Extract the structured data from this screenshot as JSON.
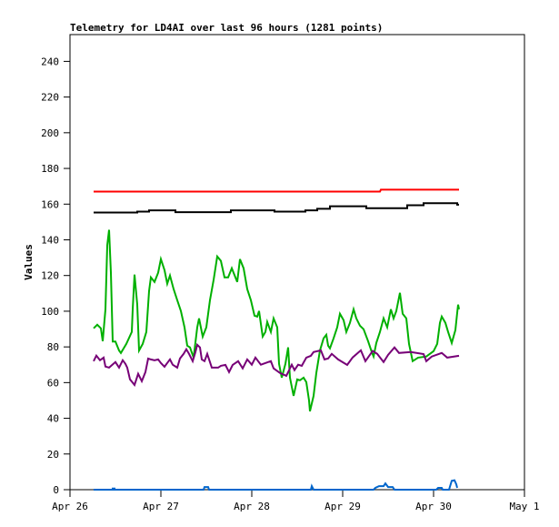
{
  "chart_data": {
    "type": "line",
    "title": "Telemetry for LD4AI over last 96 hours (1281 points)",
    "xlabel": "",
    "ylabel": "Values",
    "x_unit": "days since Apr 26 00:00",
    "xlim": [
      0,
      5
    ],
    "ylim": [
      0,
      255
    ],
    "yticks": [
      0,
      20,
      40,
      60,
      80,
      100,
      120,
      140,
      160,
      180,
      200,
      220,
      240
    ],
    "xticks": [
      {
        "value": 0,
        "label": "Apr 26"
      },
      {
        "value": 1,
        "label": "Apr 27"
      },
      {
        "value": 2,
        "label": "Apr 28"
      },
      {
        "value": 3,
        "label": "Apr 29"
      },
      {
        "value": 4,
        "label": "Apr 30"
      },
      {
        "value": 5,
        "label": "May 1"
      }
    ],
    "grid": false,
    "series": [
      {
        "name": "red",
        "color": "#ff0000",
        "points": [
          [
            0.26,
            167.0
          ],
          [
            3.41,
            167.0
          ],
          [
            3.42,
            168.1
          ],
          [
            4.28,
            168.1
          ]
        ]
      },
      {
        "name": "black",
        "color": "#000000",
        "points": [
          [
            0.26,
            155.3
          ],
          [
            0.74,
            155.3
          ],
          [
            0.74,
            155.8
          ],
          [
            0.87,
            155.8
          ],
          [
            0.87,
            156.5
          ],
          [
            1.16,
            156.5
          ],
          [
            1.16,
            155.5
          ],
          [
            1.77,
            155.5
          ],
          [
            1.77,
            156.5
          ],
          [
            2.25,
            156.5
          ],
          [
            2.25,
            155.8
          ],
          [
            2.59,
            155.8
          ],
          [
            2.59,
            156.5
          ],
          [
            2.72,
            156.5
          ],
          [
            2.72,
            157.4
          ],
          [
            2.86,
            157.4
          ],
          [
            2.86,
            158.8
          ],
          [
            3.26,
            158.8
          ],
          [
            3.26,
            157.7
          ],
          [
            3.71,
            157.7
          ],
          [
            3.71,
            159.4
          ],
          [
            3.89,
            159.4
          ],
          [
            3.89,
            160.5
          ],
          [
            4.26,
            160.5
          ],
          [
            4.26,
            159.7
          ],
          [
            4.28,
            159.7
          ]
        ]
      },
      {
        "name": "green",
        "color": "#00b000",
        "points": [
          [
            0.26,
            90.4
          ],
          [
            0.3,
            92.4
          ],
          [
            0.34,
            90.4
          ],
          [
            0.36,
            83.2
          ],
          [
            0.39,
            101
          ],
          [
            0.41,
            137
          ],
          [
            0.43,
            145.6
          ],
          [
            0.45,
            121.6
          ],
          [
            0.47,
            83
          ],
          [
            0.5,
            83
          ],
          [
            0.54,
            78
          ],
          [
            0.56,
            76.6
          ],
          [
            0.62,
            81.7
          ],
          [
            0.68,
            88.4
          ],
          [
            0.69,
            101
          ],
          [
            0.71,
            120.5
          ],
          [
            0.74,
            103.7
          ],
          [
            0.76,
            78
          ],
          [
            0.8,
            81.7
          ],
          [
            0.84,
            88.4
          ],
          [
            0.87,
            111.3
          ],
          [
            0.89,
            119
          ],
          [
            0.93,
            116.4
          ],
          [
            0.97,
            121.6
          ],
          [
            1.0,
            129.2
          ],
          [
            1.04,
            123
          ],
          [
            1.07,
            115.4
          ],
          [
            1.1,
            120
          ],
          [
            1.14,
            112.4
          ],
          [
            1.18,
            106.2
          ],
          [
            1.22,
            100.1
          ],
          [
            1.26,
            91
          ],
          [
            1.29,
            80.7
          ],
          [
            1.32,
            79.7
          ],
          [
            1.36,
            74
          ],
          [
            1.4,
            91
          ],
          [
            1.42,
            96
          ],
          [
            1.46,
            85.8
          ],
          [
            1.5,
            91
          ],
          [
            1.54,
            106.2
          ],
          [
            1.58,
            117.5
          ],
          [
            1.62,
            130.7
          ],
          [
            1.66,
            128.2
          ],
          [
            1.7,
            119
          ],
          [
            1.74,
            119
          ],
          [
            1.78,
            124.1
          ],
          [
            1.82,
            119
          ],
          [
            1.84,
            116.4
          ],
          [
            1.87,
            129.2
          ],
          [
            1.91,
            124.1
          ],
          [
            1.95,
            112.4
          ],
          [
            1.99,
            106.2
          ],
          [
            2.03,
            97.5
          ],
          [
            2.06,
            97
          ],
          [
            2.08,
            100.1
          ],
          [
            2.12,
            85.8
          ],
          [
            2.15,
            88.4
          ],
          [
            2.17,
            94
          ],
          [
            2.21,
            88.4
          ],
          [
            2.24,
            96
          ],
          [
            2.28,
            91
          ],
          [
            2.3,
            70.5
          ],
          [
            2.33,
            62.8
          ],
          [
            2.37,
            70.5
          ],
          [
            2.4,
            79.7
          ],
          [
            2.42,
            62.8
          ],
          [
            2.46,
            52.6
          ],
          [
            2.5,
            61.8
          ],
          [
            2.53,
            61.3
          ],
          [
            2.57,
            62.8
          ],
          [
            2.6,
            60.3
          ],
          [
            2.63,
            50
          ],
          [
            2.64,
            43.9
          ],
          [
            2.68,
            52.6
          ],
          [
            2.71,
            65.4
          ],
          [
            2.75,
            78
          ],
          [
            2.79,
            84.8
          ],
          [
            2.82,
            86.8
          ],
          [
            2.84,
            80.7
          ],
          [
            2.86,
            79.2
          ],
          [
            2.9,
            84.8
          ],
          [
            2.94,
            91
          ],
          [
            2.97,
            98.6
          ],
          [
            3.01,
            95
          ],
          [
            3.04,
            88.4
          ],
          [
            3.08,
            93.5
          ],
          [
            3.12,
            101.1
          ],
          [
            3.15,
            96
          ],
          [
            3.19,
            91.9
          ],
          [
            3.23,
            89.9
          ],
          [
            3.28,
            83.2
          ],
          [
            3.32,
            77.1
          ],
          [
            3.34,
            74.6
          ],
          [
            3.37,
            82.2
          ],
          [
            3.41,
            88.4
          ],
          [
            3.45,
            96
          ],
          [
            3.49,
            91
          ],
          [
            3.53,
            101.1
          ],
          [
            3.56,
            96
          ],
          [
            3.59,
            100.1
          ],
          [
            3.63,
            110.3
          ],
          [
            3.66,
            98.6
          ],
          [
            3.7,
            96
          ],
          [
            3.73,
            81.7
          ],
          [
            3.77,
            72
          ],
          [
            3.83,
            74
          ],
          [
            3.92,
            74.6
          ],
          [
            4.0,
            77.6
          ],
          [
            4.04,
            81.7
          ],
          [
            4.07,
            93.5
          ],
          [
            4.09,
            97
          ],
          [
            4.13,
            93.5
          ],
          [
            4.16,
            88.4
          ],
          [
            4.2,
            82.2
          ],
          [
            4.24,
            89.4
          ],
          [
            4.26,
            99.1
          ],
          [
            4.27,
            103.7
          ],
          [
            4.28,
            101.1
          ]
        ]
      },
      {
        "name": "purple",
        "color": "#770077",
        "points": [
          [
            0.26,
            72.0
          ],
          [
            0.29,
            75.1
          ],
          [
            0.33,
            72.5
          ],
          [
            0.37,
            74
          ],
          [
            0.39,
            69
          ],
          [
            0.43,
            68.4
          ],
          [
            0.5,
            71.5
          ],
          [
            0.54,
            68.4
          ],
          [
            0.58,
            72.5
          ],
          [
            0.61,
            70.5
          ],
          [
            0.63,
            68.4
          ],
          [
            0.66,
            61.8
          ],
          [
            0.71,
            58.7
          ],
          [
            0.75,
            64.9
          ],
          [
            0.79,
            60.8
          ],
          [
            0.83,
            65.9
          ],
          [
            0.86,
            73.5
          ],
          [
            0.89,
            73
          ],
          [
            0.93,
            72.5
          ],
          [
            0.97,
            73
          ],
          [
            1.0,
            71
          ],
          [
            1.04,
            68.9
          ],
          [
            1.07,
            71
          ],
          [
            1.1,
            73
          ],
          [
            1.13,
            70
          ],
          [
            1.18,
            68.4
          ],
          [
            1.21,
            73.5
          ],
          [
            1.25,
            76.1
          ],
          [
            1.28,
            78.7
          ],
          [
            1.31,
            76.1
          ],
          [
            1.35,
            72
          ],
          [
            1.38,
            77.1
          ],
          [
            1.4,
            81.2
          ],
          [
            1.43,
            79.7
          ],
          [
            1.45,
            73
          ],
          [
            1.48,
            72
          ],
          [
            1.51,
            76.1
          ],
          [
            1.56,
            68.4
          ],
          [
            1.63,
            68.4
          ],
          [
            1.66,
            69.4
          ],
          [
            1.71,
            69.9
          ],
          [
            1.75,
            65.9
          ],
          [
            1.79,
            69.9
          ],
          [
            1.85,
            72
          ],
          [
            1.9,
            68
          ],
          [
            1.95,
            73
          ],
          [
            2.0,
            70
          ],
          [
            2.04,
            74
          ],
          [
            2.1,
            70
          ],
          [
            2.18,
            71.5
          ],
          [
            2.21,
            72
          ],
          [
            2.24,
            68
          ],
          [
            2.31,
            65.4
          ],
          [
            2.38,
            63.8
          ],
          [
            2.44,
            70
          ],
          [
            2.47,
            67
          ],
          [
            2.51,
            70
          ],
          [
            2.55,
            69.4
          ],
          [
            2.6,
            74
          ],
          [
            2.65,
            75
          ],
          [
            2.68,
            77.1
          ],
          [
            2.76,
            78.1
          ],
          [
            2.8,
            73
          ],
          [
            2.84,
            73.5
          ],
          [
            2.88,
            76.1
          ],
          [
            2.95,
            73
          ],
          [
            3.05,
            69.9
          ],
          [
            3.11,
            74.1
          ],
          [
            3.2,
            78.1
          ],
          [
            3.25,
            72
          ],
          [
            3.33,
            77.7
          ],
          [
            3.38,
            76.1
          ],
          [
            3.45,
            71.5
          ],
          [
            3.5,
            75.6
          ],
          [
            3.57,
            79.7
          ],
          [
            3.62,
            76.6
          ],
          [
            3.75,
            77.1
          ],
          [
            3.89,
            76
          ],
          [
            3.92,
            72
          ],
          [
            3.98,
            74.6
          ],
          [
            4.09,
            76.6
          ],
          [
            4.15,
            74
          ],
          [
            4.28,
            75
          ]
        ]
      },
      {
        "name": "blue",
        "color": "#0066cc",
        "points": [
          [
            0.26,
            0
          ],
          [
            0.47,
            0
          ],
          [
            0.47,
            0.6
          ],
          [
            0.49,
            0.6
          ],
          [
            0.49,
            0
          ],
          [
            1.47,
            0
          ],
          [
            1.48,
            1.5
          ],
          [
            1.52,
            1.5
          ],
          [
            1.53,
            0
          ],
          [
            2.65,
            0
          ],
          [
            2.66,
            2
          ],
          [
            2.68,
            0
          ],
          [
            3.34,
            0
          ],
          [
            3.36,
            1
          ],
          [
            3.4,
            2
          ],
          [
            3.45,
            2
          ],
          [
            3.47,
            3.5
          ],
          [
            3.5,
            1.5
          ],
          [
            3.55,
            1.5
          ],
          [
            3.57,
            0
          ],
          [
            4.03,
            0
          ],
          [
            4.05,
            1
          ],
          [
            4.09,
            1
          ],
          [
            4.1,
            0
          ],
          [
            4.17,
            0
          ],
          [
            4.2,
            5
          ],
          [
            4.23,
            5.3
          ],
          [
            4.25,
            3
          ],
          [
            4.26,
            1
          ]
        ]
      }
    ]
  }
}
